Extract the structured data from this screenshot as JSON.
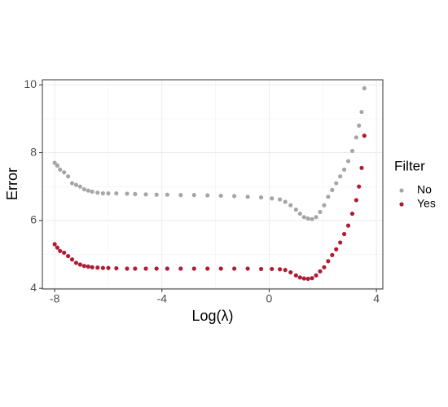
{
  "chart_data": {
    "type": "scatter",
    "x_label": "Log(λ)",
    "y_label": "Error",
    "legend_title": "Filter",
    "legend_position": "right",
    "grid": true,
    "xlim": [
      -8.46,
      4.24
    ],
    "xticks": [
      -8,
      -4,
      0,
      4
    ],
    "xminor": [
      -6,
      -2,
      2
    ],
    "ylim": [
      3.98,
      10.15
    ],
    "yticks": [
      4,
      6,
      8,
      10
    ],
    "yminor": [
      5,
      7,
      9
    ],
    "series": [
      {
        "name": "No",
        "color": "#a6a6a6",
        "x": [
          -8,
          -7.9,
          -7.8,
          -7.65,
          -7.5,
          -7.35,
          -7.2,
          -7.05,
          -6.9,
          -6.75,
          -6.6,
          -6.4,
          -6.2,
          -6,
          -5.7,
          -5.3,
          -5,
          -4.6,
          -4.2,
          -3.8,
          -3.3,
          -2.8,
          -2.3,
          -1.8,
          -1.3,
          -0.8,
          -0.3,
          0.1,
          0.4,
          0.6,
          0.8,
          1,
          1.15,
          1.3,
          1.45,
          1.6,
          1.75,
          1.9,
          2.05,
          2.2,
          2.35,
          2.5,
          2.65,
          2.8,
          2.95,
          3.1,
          3.25,
          3.35,
          3.45,
          3.55
        ],
        "values": [
          7.7,
          7.62,
          7.5,
          7.42,
          7.3,
          7.1,
          7.05,
          7.0,
          6.92,
          6.88,
          6.85,
          6.82,
          6.8,
          6.8,
          6.8,
          6.79,
          6.78,
          6.77,
          6.76,
          6.76,
          6.75,
          6.75,
          6.74,
          6.73,
          6.72,
          6.7,
          6.68,
          6.65,
          6.62,
          6.55,
          6.45,
          6.32,
          6.2,
          6.1,
          6.06,
          6.04,
          6.1,
          6.25,
          6.45,
          6.7,
          6.9,
          7.1,
          7.3,
          7.5,
          7.75,
          8.05,
          8.45,
          8.8,
          9.2,
          9.9
        ]
      },
      {
        "name": "Yes",
        "color": "#b01c34",
        "x": [
          -8,
          -7.9,
          -7.8,
          -7.65,
          -7.5,
          -7.35,
          -7.2,
          -7.05,
          -6.9,
          -6.75,
          -6.6,
          -6.4,
          -6.2,
          -6,
          -5.7,
          -5.3,
          -5,
          -4.6,
          -4.2,
          -3.8,
          -3.3,
          -2.8,
          -2.3,
          -1.8,
          -1.3,
          -0.8,
          -0.3,
          0.1,
          0.4,
          0.6,
          0.8,
          1,
          1.15,
          1.3,
          1.45,
          1.6,
          1.75,
          1.9,
          2.05,
          2.2,
          2.35,
          2.5,
          2.65,
          2.8,
          2.95,
          3.1,
          3.25,
          3.35,
          3.45,
          3.55
        ],
        "values": [
          5.3,
          5.2,
          5.1,
          5.05,
          4.95,
          4.85,
          4.75,
          4.7,
          4.66,
          4.64,
          4.62,
          4.61,
          4.6,
          4.6,
          4.59,
          4.58,
          4.58,
          4.58,
          4.58,
          4.58,
          4.58,
          4.58,
          4.58,
          4.58,
          4.58,
          4.58,
          4.57,
          4.57,
          4.56,
          4.54,
          4.47,
          4.38,
          4.32,
          4.29,
          4.28,
          4.3,
          4.38,
          4.5,
          4.62,
          4.8,
          4.98,
          5.15,
          5.35,
          5.6,
          5.85,
          6.2,
          6.6,
          7.0,
          7.55,
          8.5
        ]
      }
    ]
  }
}
